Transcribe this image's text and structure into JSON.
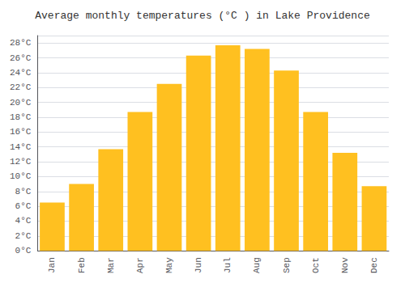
{
  "chart_data": {
    "type": "bar",
    "title": "Average monthly temperatures (°C ) in Lake Providence",
    "categories": [
      "Jan",
      "Feb",
      "Mar",
      "Apr",
      "May",
      "Jun",
      "Jul",
      "Aug",
      "Sep",
      "Oct",
      "Nov",
      "Dec"
    ],
    "values": [
      6.5,
      9.0,
      13.7,
      18.7,
      22.5,
      26.3,
      27.7,
      27.2,
      24.3,
      18.7,
      13.2,
      8.7
    ],
    "color": "#FFC020",
    "ylim": [
      0,
      29
    ],
    "yticks": [
      {
        "value": 0,
        "label": "0°C"
      },
      {
        "value": 2,
        "label": "2°C"
      },
      {
        "value": 4,
        "label": "4°C"
      },
      {
        "value": 6,
        "label": "6°C"
      },
      {
        "value": 8,
        "label": "8°C"
      },
      {
        "value": 10,
        "label": "10°C"
      },
      {
        "value": 12,
        "label": "12°C"
      },
      {
        "value": 14,
        "label": "14°C"
      },
      {
        "value": 16,
        "label": "16°C"
      },
      {
        "value": 18,
        "label": "18°C"
      },
      {
        "value": 20,
        "label": "20°C"
      },
      {
        "value": 22,
        "label": "22°C"
      },
      {
        "value": 24,
        "label": "24°C"
      },
      {
        "value": 26,
        "label": "26°C"
      },
      {
        "value": 28,
        "label": "28°C"
      }
    ],
    "grid": true
  }
}
